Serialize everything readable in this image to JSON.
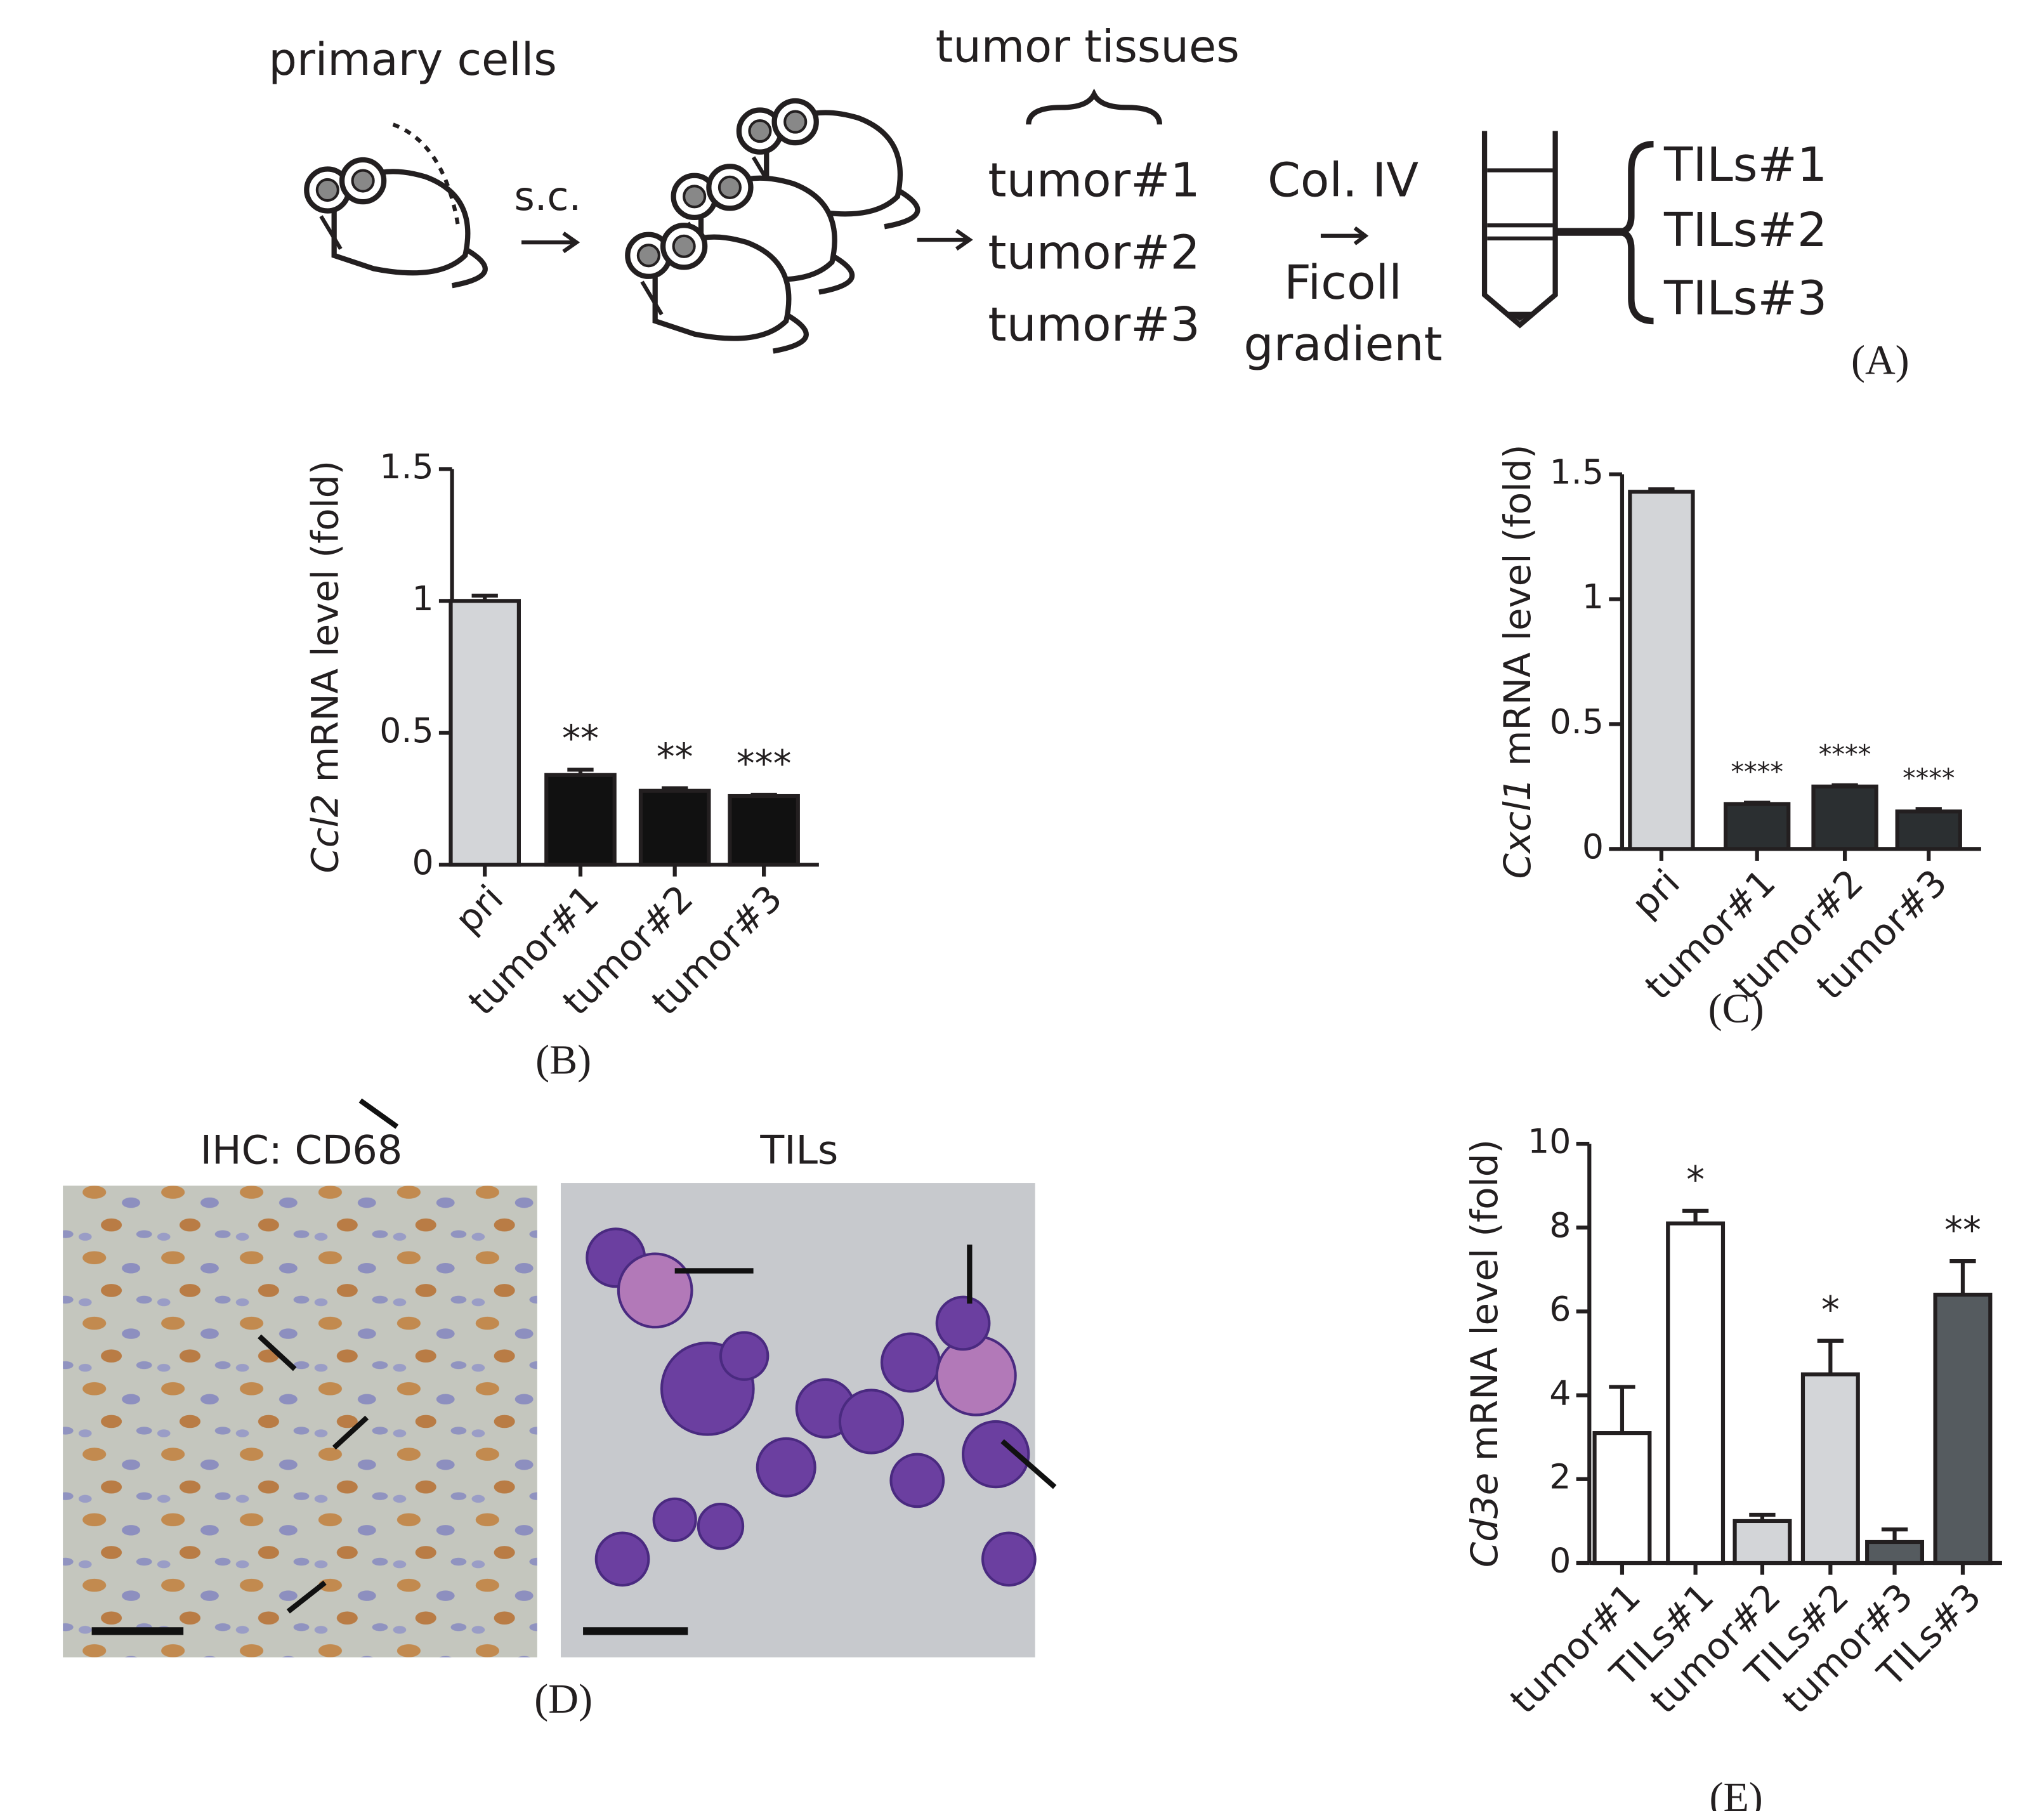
{
  "schematic": {
    "primary": "primary cells",
    "sc": "s.c.",
    "tissues": "tumor tissues",
    "tumors": [
      "tumor#1",
      "tumor#2",
      "tumor#3"
    ],
    "col": "Col. IV",
    "ficoll": "Ficoll",
    "gradient": "gradient",
    "tils": [
      "TILs#1",
      "TILs#2",
      "TILs#3"
    ],
    "panel": "(A)"
  },
  "micrographs": {
    "left_title": "IHC: CD68",
    "right_title": "TILs",
    "panel": "(D)"
  },
  "chart_data": [
    {
      "type": "bar",
      "panel": "(B)",
      "y_label_gene": "Ccl2",
      "y_label": "mRNA level (fold)",
      "categories": [
        "pri",
        "tumor#1",
        "tumor#2",
        "tumor#3"
      ],
      "values": [
        1.0,
        0.34,
        0.28,
        0.26
      ],
      "errors": [
        0.02,
        0.02,
        0.01,
        0.005
      ],
      "colors": [
        "#d3d5d8",
        "#111111",
        "#111111",
        "#111111"
      ],
      "annotations": [
        null,
        "**",
        "**",
        "***"
      ],
      "ylim": [
        0,
        1.5
      ],
      "yticks": [
        0,
        0.5,
        1,
        1.5
      ]
    },
    {
      "type": "bar",
      "panel": "(C)",
      "y_label_gene": "Cxcl1",
      "y_label": "mRNA level (fold)",
      "categories": [
        "pri",
        "tumor#1",
        "tumor#2",
        "tumor#3"
      ],
      "values": [
        1.43,
        0.18,
        0.25,
        0.15
      ],
      "errors": [
        0.01,
        0.005,
        0.005,
        0.01
      ],
      "colors": [
        "#d3d5d8",
        "#2b2f31",
        "#2b2f31",
        "#2b2f31"
      ],
      "annotations": [
        null,
        "****",
        "****",
        "****"
      ],
      "ylim": [
        0,
        1.5
      ],
      "yticks": [
        0,
        0.5,
        1,
        1.5
      ]
    },
    {
      "type": "bar",
      "panel": "(E)",
      "y_label_gene": "Cd3e",
      "y_label": "mRNA level (fold)",
      "categories": [
        "tumor#1",
        "TILs#1",
        "tumor#2",
        "TILs#2",
        "tumor#3",
        "TILs#3"
      ],
      "values": [
        3.1,
        8.1,
        1.0,
        4.5,
        0.5,
        6.4
      ],
      "errors": [
        1.1,
        0.3,
        0.15,
        0.8,
        0.3,
        0.8
      ],
      "colors": [
        "#ffffff",
        "#ffffff",
        "#d3d5d8",
        "#d3d5d8",
        "#555b5f",
        "#555b5f"
      ],
      "annotations": [
        null,
        "*",
        null,
        "*",
        null,
        "**"
      ],
      "ylim": [
        0,
        10
      ],
      "yticks": [
        0,
        2,
        4,
        6,
        8,
        10
      ]
    }
  ]
}
